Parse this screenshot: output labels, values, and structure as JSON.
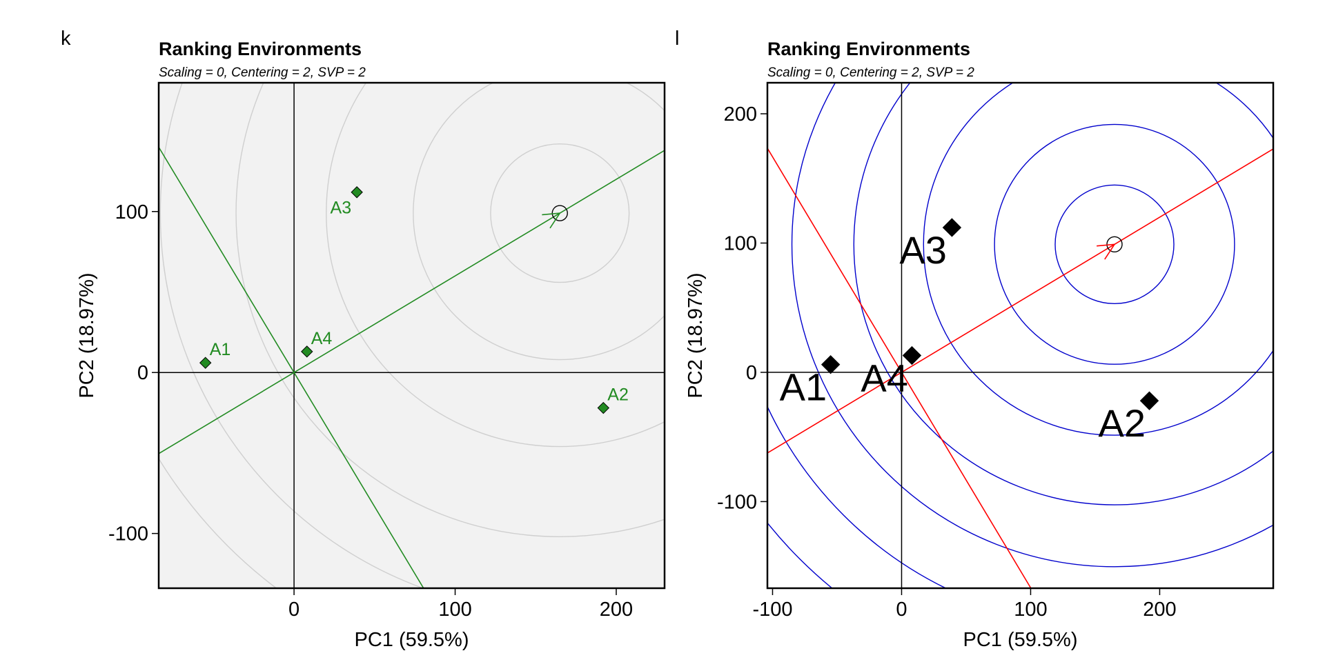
{
  "chart_data": [
    {
      "type": "scatter",
      "panel_label": "k",
      "title": "Ranking Environments",
      "subtitle": "Scaling = 0, Centering = 2, SVP = 2",
      "xlabel": "PC1 (59.5%)",
      "ylabel": "PC2 (18.97%)",
      "xlim": [
        -84,
        230
      ],
      "ylim": [
        -134,
        180
      ],
      "xticks": [
        0,
        100,
        200
      ],
      "yticks": [
        -100,
        0,
        100
      ],
      "background": "#f2f2f2",
      "point_color": "#228b22",
      "line_color": "#228b22",
      "circle_color": "#cfcfcf",
      "label_size": "small",
      "points": [
        {
          "label": "A1",
          "x": -55,
          "y": 6
        },
        {
          "label": "A2",
          "x": 192,
          "y": -22
        },
        {
          "label": "A3",
          "x": 39,
          "y": 112
        },
        {
          "label": "A4",
          "x": 8,
          "y": 13
        }
      ],
      "average_environment": {
        "x": 165,
        "y": 99
      },
      "concentric_radii": [
        43,
        91,
        145,
        201,
        248,
        292
      ]
    },
    {
      "type": "scatter",
      "panel_label": "l",
      "title": "Ranking Environments",
      "subtitle": "Scaling = 0, Centering = 2, SVP = 2",
      "xlabel": "PC1 (59.5%)",
      "ylabel": "PC2 (18.97%)",
      "xlim": [
        -104,
        288
      ],
      "ylim": [
        -167,
        224
      ],
      "xticks": [
        -100,
        0,
        100,
        200
      ],
      "yticks": [
        -100,
        0,
        100,
        200
      ],
      "background": "#ffffff",
      "point_color": "#000000",
      "line_color": "#ff0000",
      "circle_color": "#0000cc",
      "label_size": "large",
      "points": [
        {
          "label": "A1",
          "x": -55,
          "y": 6
        },
        {
          "label": "A2",
          "x": 192,
          "y": -22
        },
        {
          "label": "A3",
          "x": 39,
          "y": 112
        },
        {
          "label": "A4",
          "x": 8,
          "y": 13
        }
      ],
      "average_environment": {
        "x": 165,
        "y": 99
      },
      "concentric_radii": [
        46,
        93,
        148,
        202,
        250,
        297,
        345
      ]
    }
  ]
}
